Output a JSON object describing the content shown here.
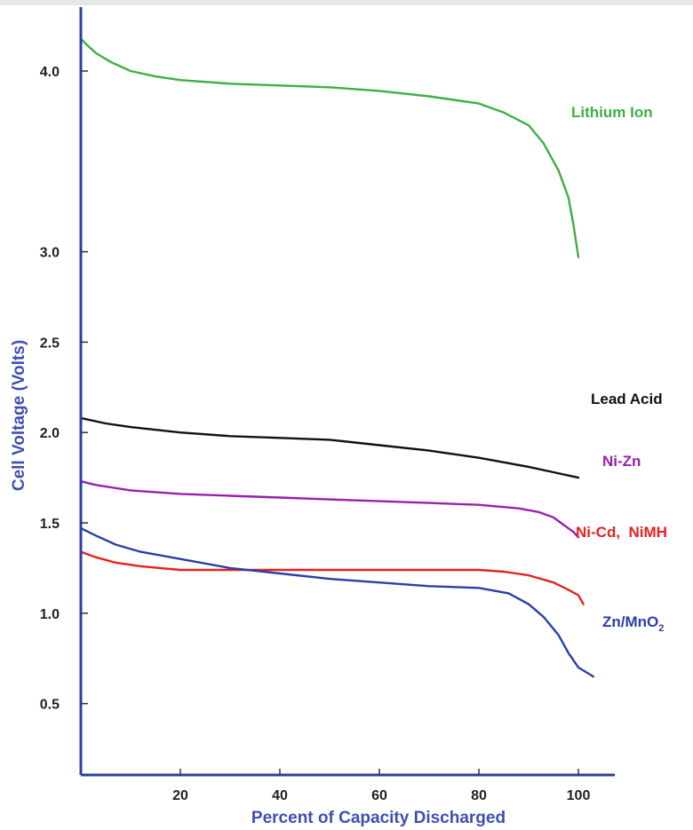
{
  "chart_data": {
    "type": "line",
    "title": "",
    "xlabel": "Percent of Capacity Discharged",
    "ylabel": "Cell Voltage (Volts)",
    "xlim": [
      0,
      108
    ],
    "ylim": [
      0,
      4.3
    ],
    "grid": false,
    "legend": "inline labels at line ends",
    "x_ticks": [
      {
        "value": 20,
        "label": "20"
      },
      {
        "value": 40,
        "label": "40"
      },
      {
        "value": 60,
        "label": "60"
      },
      {
        "value": 80,
        "label": "80"
      },
      {
        "value": 100,
        "label": "100"
      }
    ],
    "y_ticks": [
      {
        "value": 0.5,
        "label": "0.5"
      },
      {
        "value": 1.0,
        "label": "1.0"
      },
      {
        "value": 1.5,
        "label": "1.5"
      },
      {
        "value": 2.0,
        "label": "2.0"
      },
      {
        "value": 2.5,
        "label": "2.5"
      },
      {
        "value": 3.0,
        "label": "3.0"
      },
      {
        "value": 4.0,
        "label": "4.0"
      }
    ],
    "series": [
      {
        "name": "Lithium Ion",
        "color": "#3cb043",
        "points": [
          [
            0,
            4.18
          ],
          [
            1,
            4.15
          ],
          [
            3,
            4.1
          ],
          [
            6,
            4.05
          ],
          [
            10,
            4.0
          ],
          [
            15,
            3.97
          ],
          [
            20,
            3.95
          ],
          [
            30,
            3.93
          ],
          [
            40,
            3.92
          ],
          [
            50,
            3.91
          ],
          [
            60,
            3.89
          ],
          [
            70,
            3.86
          ],
          [
            80,
            3.82
          ],
          [
            85,
            3.77
          ],
          [
            90,
            3.7
          ],
          [
            93,
            3.6
          ],
          [
            96,
            3.45
          ],
          [
            98,
            3.3
          ],
          [
            99,
            3.15
          ],
          [
            100,
            2.97
          ]
        ]
      },
      {
        "name": "Lead Acid",
        "color": "#111111",
        "points": [
          [
            0,
            2.08
          ],
          [
            5,
            2.05
          ],
          [
            10,
            2.03
          ],
          [
            20,
            2.0
          ],
          [
            30,
            1.98
          ],
          [
            40,
            1.97
          ],
          [
            50,
            1.96
          ],
          [
            60,
            1.93
          ],
          [
            70,
            1.9
          ],
          [
            80,
            1.86
          ],
          [
            90,
            1.81
          ],
          [
            95,
            1.78
          ],
          [
            100,
            1.75
          ]
        ]
      },
      {
        "name": "Ni-Zn",
        "color": "#9b1fae",
        "points": [
          [
            0,
            1.73
          ],
          [
            3,
            1.71
          ],
          [
            10,
            1.68
          ],
          [
            20,
            1.66
          ],
          [
            30,
            1.65
          ],
          [
            40,
            1.64
          ],
          [
            50,
            1.63
          ],
          [
            60,
            1.62
          ],
          [
            70,
            1.61
          ],
          [
            80,
            1.6
          ],
          [
            88,
            1.58
          ],
          [
            92,
            1.56
          ],
          [
            95,
            1.53
          ],
          [
            97,
            1.49
          ],
          [
            99,
            1.45
          ],
          [
            100,
            1.42
          ]
        ]
      },
      {
        "name": "Ni-Cd,  NiMH",
        "color": "#e8201e",
        "points": [
          [
            0,
            1.34
          ],
          [
            3,
            1.31
          ],
          [
            7,
            1.28
          ],
          [
            12,
            1.26
          ],
          [
            20,
            1.24
          ],
          [
            30,
            1.24
          ],
          [
            40,
            1.24
          ],
          [
            50,
            1.24
          ],
          [
            60,
            1.24
          ],
          [
            70,
            1.24
          ],
          [
            80,
            1.24
          ],
          [
            85,
            1.23
          ],
          [
            90,
            1.21
          ],
          [
            95,
            1.17
          ],
          [
            98,
            1.13
          ],
          [
            100,
            1.1
          ],
          [
            101,
            1.05
          ]
        ]
      },
      {
        "name": "Zn/MnO",
        "name_subscript": "2",
        "color": "#2a3fa8",
        "points": [
          [
            0,
            1.47
          ],
          [
            3,
            1.43
          ],
          [
            7,
            1.38
          ],
          [
            12,
            1.34
          ],
          [
            20,
            1.3
          ],
          [
            30,
            1.25
          ],
          [
            40,
            1.22
          ],
          [
            50,
            1.19
          ],
          [
            60,
            1.17
          ],
          [
            70,
            1.15
          ],
          [
            80,
            1.14
          ],
          [
            86,
            1.11
          ],
          [
            90,
            1.05
          ],
          [
            93,
            0.98
          ],
          [
            96,
            0.88
          ],
          [
            98,
            0.78
          ],
          [
            100,
            0.7
          ],
          [
            103,
            0.65
          ]
        ]
      }
    ]
  }
}
